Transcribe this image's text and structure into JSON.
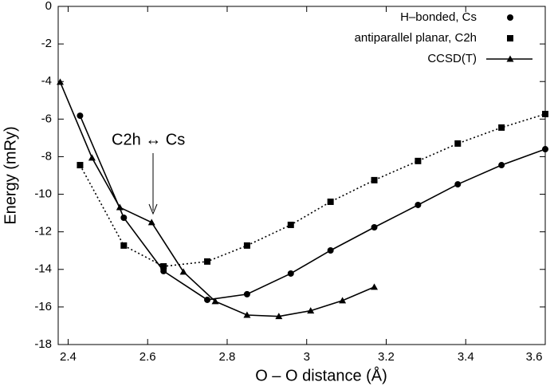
{
  "chart_data": {
    "type": "line",
    "x_label": "O – O distance (Å)",
    "y_label": "Energy (mRy)",
    "annotation": "C2h ↔ Cs",
    "xlim": [
      2.375,
      3.6
    ],
    "xticks": [
      2.4,
      2.6,
      2.8,
      3.0,
      3.2,
      3.4,
      3.6
    ],
    "ylim": [
      -18,
      0
    ],
    "yticks": [
      0,
      -2,
      -4,
      -6,
      -8,
      -10,
      -12,
      -14,
      -16,
      -18
    ],
    "grid": false,
    "legend": "top-right",
    "series": [
      {
        "name": "H–bonded, Cs",
        "color": "#000000",
        "marker": "circle",
        "dash": "solid",
        "x": [
          2.43,
          2.54,
          2.64,
          2.75,
          2.85,
          2.96,
          3.06,
          3.17,
          3.28,
          3.38,
          3.49,
          3.6
        ],
        "values": [
          -5.82,
          -11.25,
          -14.09,
          -15.62,
          -15.32,
          -14.22,
          -12.99,
          -11.76,
          -10.57,
          -9.47,
          -8.45,
          -7.6
        ]
      },
      {
        "name": "antiparallel planar, C2h",
        "color": "#000000",
        "marker": "square",
        "dash": "dotted",
        "x": [
          2.43,
          2.54,
          2.64,
          2.75,
          2.85,
          2.96,
          3.06,
          3.17,
          3.28,
          3.38,
          3.49,
          3.6
        ],
        "values": [
          -8.45,
          -12.73,
          -13.84,
          -13.58,
          -12.73,
          -11.63,
          -10.4,
          -9.25,
          -8.23,
          -7.3,
          -6.45,
          -5.73
        ]
      },
      {
        "name": "CCSD(T)",
        "color": "#000000",
        "marker": "triangle",
        "dash": "solid",
        "x": [
          2.38,
          2.46,
          2.53,
          2.61,
          2.69,
          2.77,
          2.85,
          2.93,
          3.01,
          3.09,
          3.17
        ],
        "values": [
          -4.03,
          -8.06,
          -10.7,
          -11.5,
          -14.13,
          -15.7,
          -16.43,
          -16.5,
          -16.2,
          -15.66,
          -14.94
        ]
      }
    ]
  }
}
